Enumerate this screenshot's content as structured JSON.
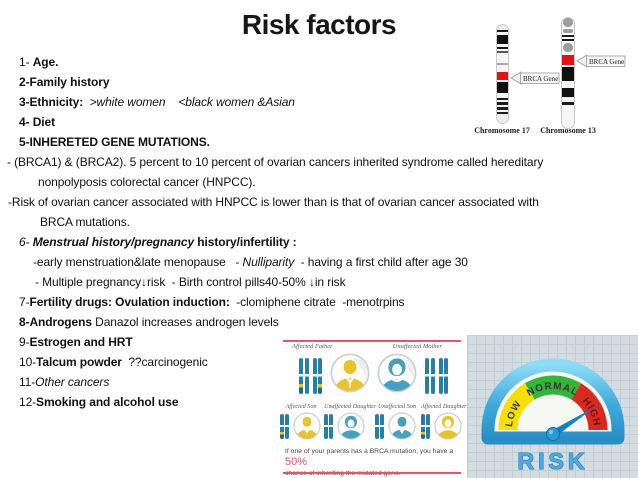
{
  "title": "Risk factors",
  "body": {
    "lines": [
      {
        "indent": 19,
        "segments": [
          {
            "t": "1- ",
            "s": ""
          },
          {
            "t": "Age.",
            "s": "b"
          }
        ]
      },
      {
        "indent": 19,
        "segments": [
          {
            "t": "2-Family history",
            "s": "b"
          }
        ]
      },
      {
        "indent": 19,
        "segments": [
          {
            "t": "3-Ethnicity:",
            "s": "b"
          },
          {
            "t": "  >white women    <black women &Asian",
            "s": "i"
          }
        ]
      },
      {
        "indent": 19,
        "segments": [
          {
            "t": "4- Diet",
            "s": "b"
          }
        ]
      },
      {
        "indent": 19,
        "segments": [
          {
            "t": "5-INHERETED GENE MUTATIONS.",
            "s": "b"
          }
        ]
      },
      {
        "indent": 7,
        "segments": [
          {
            "t": "- (BRCA1) & (BRCA2). 5 percent to 10 percent of ovarian cancers inherited syndrome called hereditary",
            "s": ""
          }
        ]
      },
      {
        "indent": 38,
        "segments": [
          {
            "t": "nonpolyposis colorectal cancer (HNPCC).",
            "s": ""
          }
        ]
      },
      {
        "indent": 8,
        "segments": [
          {
            "t": "-Risk of ovarian cancer associated with HNPCC is lower than is that of ovarian cancer associated with",
            "s": ""
          }
        ]
      },
      {
        "indent": 40,
        "segments": [
          {
            "t": "BRCA mutations.",
            "s": ""
          }
        ]
      },
      {
        "indent": 19,
        "segments": [
          {
            "t": "6- ",
            "s": "i"
          },
          {
            "t": "Menstrual history/pregnancy ",
            "s": "bi"
          },
          {
            "t": "history/infertility :",
            "s": "b"
          }
        ]
      },
      {
        "indent": 33,
        "segments": [
          {
            "t": "-early menstruation&late menopause   - ",
            "s": ""
          },
          {
            "t": "Nulliparity",
            "s": "i"
          },
          {
            "t": "  - having a first child after age 30",
            "s": ""
          }
        ]
      },
      {
        "indent": 35,
        "segments": [
          {
            "t": "- Multiple pregnancy↓risk  - Birth control pills40-50% ↓in risk",
            "s": ""
          }
        ]
      },
      {
        "indent": 19,
        "segments": [
          {
            "t": "7-",
            "s": ""
          },
          {
            "t": "Fertility drugs: Ovulation induction:",
            "s": "b"
          },
          {
            "t": "  -clomiphene citrate  -menotrpins",
            "s": ""
          }
        ]
      },
      {
        "indent": 19,
        "segments": [
          {
            "t": "8-Androgens",
            "s": "b"
          },
          {
            "t": " Danazol increases androgen levels",
            "s": ""
          }
        ]
      },
      {
        "indent": 19,
        "segments": [
          {
            "t": "9-",
            "s": ""
          },
          {
            "t": "Estrogen and HRT",
            "s": "b"
          }
        ]
      },
      {
        "indent": 19,
        "segments": [
          {
            "t": "10-",
            "s": ""
          },
          {
            "t": "Talcum powder",
            "s": "b"
          },
          {
            "t": "  ??carcinogenic",
            "s": ""
          }
        ]
      },
      {
        "indent": 19,
        "segments": [
          {
            "t": "11-",
            "s": ""
          },
          {
            "t": "Other cancers",
            "s": "i"
          }
        ]
      },
      {
        "indent": 19,
        "segments": [
          {
            "t": "12-",
            "s": ""
          },
          {
            "t": "Smoking and alcohol use",
            "s": "b"
          }
        ]
      }
    ]
  },
  "chromosome_diagram": {
    "gene1_arrow": "BRCA Gene 1",
    "gene2_arrow": "BRCA Gene 2",
    "chr17_label": "Chromosome 17",
    "chr13_label": "Chromosome 13",
    "gene_band_color": "#e01414",
    "chr17_bands": [
      [
        "#ececec",
        5
      ],
      [
        "#1c1c1c",
        2
      ],
      [
        "#f6f6f6",
        3
      ],
      [
        "#101010",
        9
      ],
      [
        "#f6f6f6",
        3
      ],
      [
        "#1c1c1c",
        2
      ],
      [
        "#f6f6f6",
        2
      ],
      [
        "#5a5a5a",
        2
      ],
      [
        "#f6f6f6",
        10
      ],
      [
        "#a6a6a6",
        2
      ],
      [
        "#f6f6f6",
        7
      ],
      [
        "#e01414",
        8
      ],
      [
        "#f6f6f6",
        2
      ],
      [
        "#101010",
        11
      ],
      [
        "#f6f6f6",
        5
      ],
      [
        "#1c1c1c",
        2
      ],
      [
        "#f6f6f6",
        2
      ],
      [
        "#1c1c1c",
        3
      ],
      [
        "#f6f6f6",
        2
      ],
      [
        "#1c1c1c",
        3
      ],
      [
        "#f6f6f6",
        2
      ],
      [
        "#1c1c1c",
        2
      ],
      [
        "#ececec",
        11
      ]
    ],
    "chr13_bands": [
      [
        "#9c9c9c",
        9,
        1
      ],
      [
        "#ffffff",
        2
      ],
      [
        "#9c9c9c",
        4,
        1
      ],
      [
        "#ffffff",
        2
      ],
      [
        "#1c1c1c",
        2
      ],
      [
        "#ffffff",
        2
      ],
      [
        "#1c1c1c",
        2
      ],
      [
        "#ffffff",
        2
      ],
      [
        "#9c9c9c",
        9,
        1
      ],
      [
        "#ffffff",
        3
      ],
      [
        "#e01414",
        10
      ],
      [
        "#f6f6f6",
        2
      ],
      [
        "#101010",
        14
      ],
      [
        "#f6f6f6",
        7
      ],
      [
        "#101010",
        9
      ],
      [
        "#f6f6f6",
        5
      ],
      [
        "#1c1c1c",
        3
      ],
      [
        "#f6f6f6",
        18
      ]
    ]
  },
  "inheritance_infographic": {
    "parents": [
      {
        "label": "Affected Father"
      },
      {
        "label": "Unaffected Mother"
      }
    ],
    "children": [
      {
        "label": "Affected Son"
      },
      {
        "label": "Unaffected Daughter"
      },
      {
        "label": "Unaffected Son"
      },
      {
        "label": "Affected Daughter"
      }
    ],
    "caption_line1": "If one of your parents has a BRCA mutation, you have a ",
    "caption_highlight": "50%",
    "caption_line2": "chance of inheriting the mutated gene.",
    "colors": {
      "affected": "#e7c32e",
      "unaffected": "#47a0bf",
      "chromosome": "#2b7e9e",
      "accent": "#e8556b"
    }
  },
  "risk_gauge": {
    "low": "LOW",
    "normal": "NORMAL",
    "high": "HIGH",
    "risk": "RISK",
    "needle_points_to": "high",
    "colors": {
      "low": "#f7df00",
      "normal": "#35b33a",
      "high": "#d62a22",
      "frame": "#3fa9dd",
      "risk_text": "#4fa8e0"
    }
  }
}
